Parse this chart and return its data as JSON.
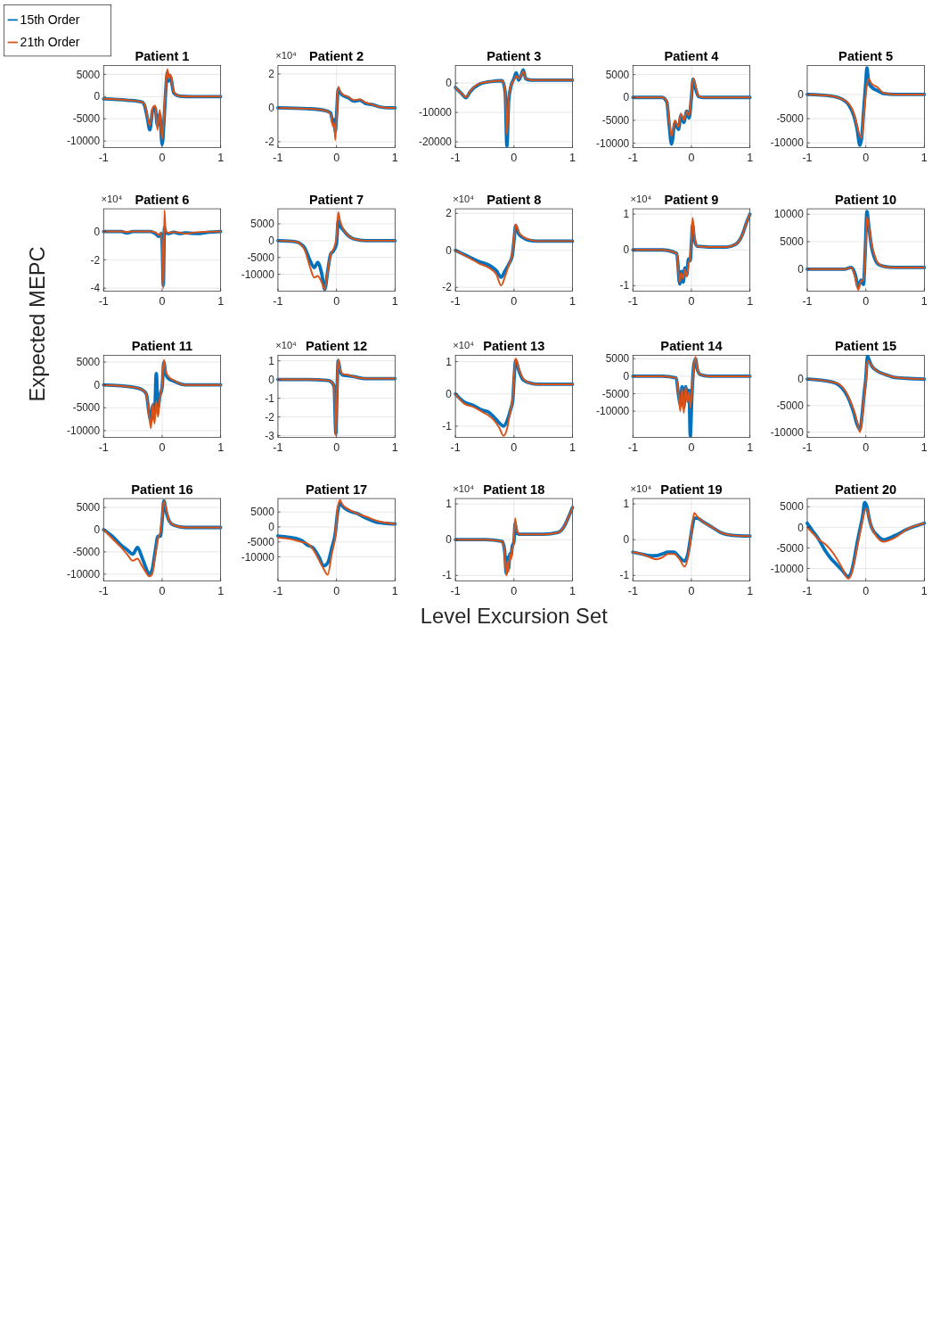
{
  "chart_data": [
    {
      "type": "line",
      "title": "Patient 1",
      "legend": "top left",
      "xlim": [
        -1,
        1
      ],
      "xticks": [
        -1,
        0,
        1
      ],
      "ylim": [
        -11500,
        7000
      ],
      "yticks": [
        5000,
        0,
        -5000,
        -10000
      ],
      "grid": true,
      "x": [
        -1,
        -0.6,
        -0.35,
        -0.3,
        -0.25,
        -0.21,
        -0.16,
        -0.12,
        -0.08,
        -0.04,
        0,
        0.03,
        0.06,
        0.09,
        0.11,
        0.14,
        0.2,
        0.3,
        0.5,
        1
      ],
      "series": [
        {
          "name": "15th Order",
          "color": "#0072bd",
          "values": [
            -500,
            -800,
            -1200,
            -2000,
            -5000,
            -7500,
            -3000,
            -2500,
            -6500,
            -4000,
            -10800,
            -6000,
            1000,
            5500,
            3500,
            4500,
            800,
            100,
            0,
            0
          ]
        },
        {
          "name": "21th Order",
          "color": "#d95319",
          "values": [
            -500,
            -800,
            -1200,
            -1800,
            -4500,
            -6500,
            -2500,
            -2000,
            -7500,
            -3000,
            -9500,
            -5000,
            2000,
            6200,
            4000,
            5000,
            1000,
            100,
            0,
            0
          ]
        }
      ]
    },
    {
      "type": "line",
      "title": "Patient 2",
      "annotations": [
        "×10⁴"
      ],
      "xlim": [
        -1,
        1
      ],
      "xticks": [
        -1,
        0,
        1
      ],
      "ylim": [
        -2.35,
        2.5
      ],
      "yticks": [
        2,
        0,
        -2
      ],
      "grid": true,
      "x": [
        -1,
        -0.5,
        -0.2,
        -0.1,
        -0.06,
        -0.04,
        -0.02,
        0,
        0.03,
        0.06,
        0.1,
        0.2,
        0.3,
        0.4,
        0.5,
        0.6,
        0.75,
        0.9,
        1
      ],
      "series": [
        {
          "color": "#0072bd",
          "values": [
            0,
            -0.05,
            -0.15,
            -0.3,
            -0.9,
            -0.7,
            -1.4,
            -0.5,
            1.1,
            0.9,
            0.75,
            0.6,
            0.4,
            0.45,
            0.25,
            0.2,
            0.05,
            0,
            0
          ]
        },
        {
          "color": "#d95319",
          "values": [
            0,
            -0.05,
            -0.15,
            -0.35,
            -1.1,
            -0.9,
            -1.9,
            -0.5,
            1.25,
            1,
            0.8,
            0.65,
            0.45,
            0.5,
            0.3,
            0.2,
            0.05,
            0,
            0
          ]
        }
      ]
    },
    {
      "type": "line",
      "title": "Patient 3",
      "xlim": [
        -1,
        1
      ],
      "xticks": [
        -1,
        0,
        1
      ],
      "ylim": [
        -22000,
        6000
      ],
      "yticks": [
        0,
        -10000,
        -20000
      ],
      "grid": true,
      "x": [
        -1,
        -0.9,
        -0.82,
        -0.75,
        -0.6,
        -0.4,
        -0.2,
        -0.15,
        -0.12,
        -0.09,
        -0.05,
        0,
        0.04,
        0.08,
        0.12,
        0.16,
        0.2,
        0.3,
        0.6,
        1
      ],
      "series": [
        {
          "color": "#0072bd",
          "values": [
            -1500,
            -3500,
            -5000,
            -3000,
            -500,
            500,
            800,
            -3000,
            -21500,
            -6000,
            -1000,
            1500,
            3500,
            1000,
            2500,
            4500,
            1500,
            1000,
            1000,
            1000
          ]
        },
        {
          "color": "#d95319",
          "values": [
            -1500,
            -3500,
            -4800,
            -2800,
            -300,
            500,
            800,
            -2500,
            -17500,
            -5000,
            -800,
            1000,
            2500,
            1500,
            2500,
            4000,
            1500,
            1000,
            1000,
            1000
          ]
        }
      ]
    },
    {
      "type": "line",
      "title": "Patient 4",
      "xlim": [
        -1,
        1
      ],
      "xticks": [
        -1,
        0,
        1
      ],
      "ylim": [
        -11000,
        7000
      ],
      "yticks": [
        5000,
        0,
        -5000,
        -10000
      ],
      "grid": true,
      "x": [
        -1,
        -0.5,
        -0.42,
        -0.38,
        -0.34,
        -0.28,
        -0.22,
        -0.18,
        -0.13,
        -0.08,
        -0.04,
        0,
        0.03,
        0.07,
        0.12,
        0.2,
        0.5,
        1
      ],
      "series": [
        {
          "color": "#0072bd",
          "values": [
            0,
            0,
            -1000,
            -6000,
            -10200,
            -5500,
            -7000,
            -4000,
            -5500,
            -3000,
            -4500,
            0,
            4000,
            2000,
            200,
            0,
            0,
            0
          ]
        },
        {
          "color": "#d95319",
          "values": [
            0,
            0,
            -800,
            -5000,
            -8500,
            -5000,
            -6500,
            -3500,
            -5000,
            -3000,
            -4000,
            500,
            4200,
            2500,
            300,
            0,
            0,
            0
          ]
        }
      ]
    },
    {
      "type": "line",
      "title": "Patient 5",
      "xlim": [
        -1,
        1
      ],
      "xticks": [
        -1,
        0,
        1
      ],
      "ylim": [
        -11000,
        6000
      ],
      "yticks": [
        0,
        -5000,
        -10000
      ],
      "grid": true,
      "x": [
        -1,
        -0.6,
        -0.4,
        -0.3,
        -0.2,
        -0.15,
        -0.1,
        -0.07,
        -0.04,
        0,
        0.02,
        0.05,
        0.1,
        0.2,
        0.3,
        0.5,
        1
      ],
      "series": [
        {
          "color": "#0072bd",
          "values": [
            0,
            -300,
            -1000,
            -2000,
            -4500,
            -7000,
            -10500,
            -9000,
            -4000,
            2500,
            5500,
            2500,
            1500,
            800,
            200,
            0,
            0
          ]
        },
        {
          "color": "#d95319",
          "values": [
            0,
            -300,
            -1000,
            -1800,
            -4000,
            -6500,
            -8500,
            -9000,
            -5000,
            0,
            2000,
            3200,
            2200,
            1500,
            300,
            0,
            0
          ]
        }
      ]
    },
    {
      "type": "line",
      "title": "Patient 6",
      "annotations": [
        "×10⁴"
      ],
      "xlim": [
        -1,
        1
      ],
      "xticks": [
        -1,
        0,
        1
      ],
      "ylim": [
        -4.2,
        1.6
      ],
      "yticks": [
        0,
        -2,
        -4
      ],
      "grid": true,
      "x": [
        -1,
        -0.7,
        -0.6,
        -0.5,
        -0.2,
        -0.1,
        -0.06,
        -0.02,
        0,
        0.02,
        0.04,
        0.06,
        0.1,
        0.2,
        0.3,
        0.4,
        0.6,
        0.8,
        1
      ],
      "series": [
        {
          "color": "#0072bd",
          "values": [
            0,
            0,
            -0.12,
            0,
            0,
            -0.2,
            -0.35,
            -0.15,
            -0.8,
            -3.8,
            0.3,
            -0.05,
            -0.15,
            -0.05,
            -0.15,
            -0.1,
            -0.15,
            -0.05,
            0
          ]
        },
        {
          "color": "#d95319",
          "values": [
            0,
            0,
            -0.03,
            0,
            0,
            -0.1,
            -0.25,
            -0.1,
            -1,
            -4,
            1.5,
            0.05,
            -0.1,
            -0.05,
            -0.08,
            -0.15,
            -0.05,
            -0.02,
            0
          ]
        }
      ]
    },
    {
      "type": "line",
      "title": "Patient 7",
      "xlim": [
        -1,
        1
      ],
      "xticks": [
        -1,
        0,
        1
      ],
      "ylim": [
        -15000,
        9500
      ],
      "yticks": [
        5000,
        0,
        -5000,
        -10000
      ],
      "grid": true,
      "x": [
        -1,
        -0.7,
        -0.55,
        -0.45,
        -0.38,
        -0.32,
        -0.25,
        -0.2,
        -0.15,
        -0.1,
        -0.05,
        0,
        0.03,
        0.06,
        0.1,
        0.2,
        0.3,
        0.5,
        1
      ],
      "series": [
        {
          "color": "#0072bd",
          "values": [
            0,
            -300,
            -2000,
            -6000,
            -8000,
            -6500,
            -10000,
            -14500,
            -9000,
            -4000,
            -3000,
            -1000,
            6000,
            4500,
            3500,
            1500,
            500,
            0,
            0
          ]
        },
        {
          "color": "#d95319",
          "values": [
            0,
            -300,
            -2500,
            -8000,
            -11000,
            -10500,
            -12500,
            -14500,
            -9000,
            -4000,
            -2500,
            1000,
            8500,
            6000,
            4000,
            1500,
            500,
            0,
            0
          ]
        }
      ]
    },
    {
      "type": "line",
      "title": "Patient 8",
      "annotations": [
        "×10⁴"
      ],
      "xlim": [
        -1,
        1
      ],
      "xticks": [
        -1,
        0,
        1
      ],
      "ylim": [
        -2.2,
        2.25
      ],
      "yticks": [
        2,
        0,
        -2
      ],
      "grid": true,
      "x": [
        -1,
        -0.8,
        -0.6,
        -0.4,
        -0.3,
        -0.22,
        -0.15,
        -0.08,
        -0.03,
        0,
        0.03,
        0.08,
        0.15,
        0.25,
        0.4,
        0.7,
        1
      ],
      "series": [
        {
          "color": "#0072bd",
          "values": [
            0,
            -0.3,
            -0.6,
            -0.85,
            -1.1,
            -1.45,
            -1.1,
            -0.7,
            -0.3,
            0.5,
            1.35,
            0.9,
            0.7,
            0.55,
            0.5,
            0.5,
            0.5
          ]
        },
        {
          "color": "#d95319",
          "values": [
            0,
            -0.35,
            -0.7,
            -1,
            -1.3,
            -1.9,
            -1.4,
            -0.7,
            -0.2,
            0.6,
            1.4,
            1,
            0.75,
            0.6,
            0.5,
            0.5,
            0.5
          ]
        }
      ]
    },
    {
      "type": "line",
      "title": "Patient 9",
      "annotations": [
        "×10⁴"
      ],
      "xlim": [
        -1,
        1
      ],
      "xticks": [
        -1,
        0,
        1
      ],
      "ylim": [
        -1.15,
        1.15
      ],
      "yticks": [
        1,
        0,
        -1
      ],
      "grid": true,
      "x": [
        -1,
        -0.5,
        -0.25,
        -0.2,
        -0.17,
        -0.14,
        -0.11,
        -0.08,
        -0.05,
        -0.02,
        0,
        0.02,
        0.05,
        0.1,
        0.3,
        0.6,
        0.75,
        0.85,
        0.95,
        1
      ],
      "series": [
        {
          "color": "#0072bd",
          "values": [
            0,
            0,
            -0.1,
            -0.95,
            -0.6,
            -0.9,
            -0.5,
            -0.7,
            -0.25,
            -0.3,
            0.2,
            0.7,
            0.3,
            0.1,
            0.08,
            0.08,
            0.15,
            0.35,
            0.8,
            1
          ]
        },
        {
          "color": "#d95319",
          "values": [
            0,
            0,
            -0.1,
            -0.9,
            -0.65,
            -0.8,
            -0.55,
            -0.75,
            -0.4,
            -0.2,
            0.3,
            0.9,
            0.4,
            0.1,
            0.08,
            0.08,
            0.15,
            0.35,
            0.8,
            1
          ]
        }
      ]
    },
    {
      "type": "line",
      "title": "Patient 10",
      "xlim": [
        -1,
        1
      ],
      "xticks": [
        -1,
        0,
        1
      ],
      "ylim": [
        -4000,
        11000
      ],
      "yticks": [
        10000,
        5000,
        0
      ],
      "grid": true,
      "x": [
        -1,
        -0.5,
        -0.35,
        -0.25,
        -0.18,
        -0.13,
        -0.08,
        -0.04,
        -0.01,
        0.02,
        0.05,
        0.1,
        0.15,
        0.2,
        0.3,
        0.5,
        1
      ],
      "series": [
        {
          "color": "#0072bd",
          "values": [
            0,
            0,
            0,
            300,
            -1000,
            -3200,
            -2000,
            -2800,
            3000,
            10500,
            8000,
            4000,
            2000,
            1000,
            500,
            300,
            300
          ]
        },
        {
          "color": "#d95319",
          "values": [
            0,
            0,
            0,
            300,
            -1500,
            -3800,
            -2200,
            -2000,
            2000,
            9500,
            8000,
            4500,
            2500,
            1200,
            500,
            300,
            300
          ]
        }
      ]
    },
    {
      "type": "line",
      "title": "Patient 11",
      "ylabel": "Expected MEPC",
      "xlim": [
        -1,
        1
      ],
      "xticks": [
        -1,
        0,
        1
      ],
      "ylim": [
        -11500,
        6500
      ],
      "yticks": [
        5000,
        0,
        -5000,
        -10000
      ],
      "grid": true,
      "x": [
        -1,
        -0.5,
        -0.35,
        -0.27,
        -0.22,
        -0.19,
        -0.16,
        -0.13,
        -0.1,
        -0.07,
        -0.04,
        0,
        0.03,
        0.06,
        0.1,
        0.2,
        0.4,
        1
      ],
      "series": [
        {
          "color": "#0072bd",
          "values": [
            0,
            -500,
            -1000,
            -2000,
            -6500,
            -8000,
            -4500,
            -6500,
            2500,
            -5000,
            -2500,
            -500,
            5000,
            2500,
            1500,
            800,
            0,
            0
          ]
        },
        {
          "color": "#d95319",
          "values": [
            0,
            -500,
            -1000,
            -2000,
            -7000,
            -9500,
            -4000,
            -8500,
            -3500,
            -7000,
            -3000,
            0,
            5500,
            3000,
            2000,
            1000,
            0,
            0
          ]
        }
      ]
    },
    {
      "type": "line",
      "title": "Patient 12",
      "annotations": [
        "×10⁴"
      ],
      "xlim": [
        -1,
        1
      ],
      "xticks": [
        -1,
        0,
        1
      ],
      "ylim": [
        -3.1,
        1.3
      ],
      "yticks": [
        1,
        0,
        -1,
        -2,
        -3
      ],
      "grid": true,
      "x": [
        -1,
        -0.5,
        -0.15,
        -0.08,
        -0.04,
        -0.01,
        0.01,
        0.03,
        0.06,
        0.1,
        0.2,
        0.3,
        0.5,
        1
      ],
      "series": [
        {
          "color": "#0072bd",
          "values": [
            0,
            0,
            -0.05,
            -0.15,
            -0.4,
            -2.9,
            -0.5,
            1,
            0.5,
            0.25,
            0.2,
            0.15,
            0.05,
            0.05
          ]
        },
        {
          "color": "#d95319",
          "values": [
            0,
            0,
            -0.05,
            -0.15,
            -0.4,
            -3,
            -0.5,
            1.1,
            0.55,
            0.3,
            0.25,
            0.15,
            0.05,
            0.05
          ]
        }
      ]
    },
    {
      "type": "line",
      "title": "Patient 13",
      "annotations": [
        "×10⁴"
      ],
      "xlim": [
        -1,
        1
      ],
      "xticks": [
        -1,
        0,
        1
      ],
      "ylim": [
        -1.35,
        1.2
      ],
      "yticks": [
        1,
        0,
        -1
      ],
      "grid": true,
      "x": [
        -1,
        -0.85,
        -0.7,
        -0.55,
        -0.45,
        -0.35,
        -0.25,
        -0.18,
        -0.12,
        -0.06,
        -0.02,
        0,
        0.03,
        0.08,
        0.15,
        0.25,
        0.4,
        1
      ],
      "series": [
        {
          "color": "#0072bd",
          "values": [
            0,
            -0.25,
            -0.35,
            -0.5,
            -0.55,
            -0.7,
            -0.9,
            -1,
            -0.85,
            -0.5,
            -0.2,
            0.4,
            1.05,
            0.75,
            0.45,
            0.35,
            0.3,
            0.3
          ]
        },
        {
          "color": "#d95319",
          "values": [
            0,
            -0.3,
            -0.4,
            -0.55,
            -0.65,
            -0.8,
            -1.05,
            -1.3,
            -1.1,
            -0.5,
            -0.1,
            0.5,
            1.1,
            0.8,
            0.5,
            0.35,
            0.3,
            0.3
          ]
        }
      ]
    },
    {
      "type": "line",
      "title": "Patient 14",
      "xlim": [
        -1,
        1
      ],
      "xticks": [
        -1,
        0,
        1
      ],
      "ylim": [
        -17500,
        6000
      ],
      "yticks": [
        5000,
        0,
        -5000,
        -10000
      ],
      "grid": true,
      "x": [
        -1,
        -0.5,
        -0.26,
        -0.22,
        -0.19,
        -0.16,
        -0.13,
        -0.1,
        -0.07,
        -0.04,
        -0.02,
        0.01,
        0.04,
        0.07,
        0.1,
        0.15,
        0.3,
        1
      ],
      "series": [
        {
          "color": "#0072bd",
          "values": [
            0,
            0,
            -500,
            -5500,
            -8000,
            -3000,
            -9000,
            -3000,
            -6000,
            -4000,
            -17000,
            -5000,
            3000,
            5000,
            2000,
            500,
            0,
            0
          ]
        },
        {
          "color": "#d95319",
          "values": [
            0,
            0,
            -500,
            -5000,
            -10000,
            -3500,
            -10500,
            -3000,
            -7500,
            -4500,
            -9000,
            -4000,
            2500,
            5500,
            2000,
            500,
            0,
            0
          ]
        }
      ]
    },
    {
      "type": "line",
      "title": "Patient 15",
      "xlim": [
        -1,
        1
      ],
      "xticks": [
        -1,
        0,
        1
      ],
      "ylim": [
        -11000,
        4500
      ],
      "yticks": [
        0,
        -5000,
        -10000
      ],
      "grid": true,
      "x": [
        -1,
        -0.6,
        -0.45,
        -0.35,
        -0.28,
        -0.2,
        -0.15,
        -0.1,
        -0.06,
        -0.03,
        0,
        0.03,
        0.06,
        0.1,
        0.2,
        0.35,
        0.5,
        1
      ],
      "series": [
        {
          "color": "#0072bd",
          "values": [
            0,
            -500,
            -1200,
            -2500,
            -4000,
            -6500,
            -8500,
            -9500,
            -6500,
            -3000,
            0,
            4300,
            3500,
            2500,
            1500,
            800,
            300,
            0
          ]
        },
        {
          "color": "#d95319",
          "values": [
            0,
            -500,
            -1000,
            -2200,
            -3800,
            -6000,
            -8000,
            -10000,
            -7000,
            -3500,
            -500,
            3500,
            3200,
            2500,
            1500,
            800,
            300,
            0
          ]
        }
      ]
    },
    {
      "type": "line",
      "title": "Patient 16",
      "xlim": [
        -1,
        1
      ],
      "xticks": [
        -1,
        0,
        1
      ],
      "ylim": [
        -11500,
        7000
      ],
      "yticks": [
        5000,
        0,
        -5000,
        -10000
      ],
      "grid": true,
      "x": [
        -1,
        -0.85,
        -0.7,
        -0.6,
        -0.5,
        -0.42,
        -0.35,
        -0.28,
        -0.22,
        -0.17,
        -0.12,
        -0.07,
        -0.03,
        0,
        0.03,
        0.07,
        0.12,
        0.2,
        0.4,
        1
      ],
      "series": [
        {
          "color": "#0072bd",
          "values": [
            0,
            -1500,
            -3500,
            -4500,
            -5500,
            -4000,
            -6000,
            -8500,
            -10000,
            -9000,
            -5000,
            -1500,
            -1500,
            2000,
            6500,
            4000,
            2000,
            1000,
            500,
            500
          ]
        },
        {
          "color": "#d95319",
          "values": [
            0,
            -2000,
            -4000,
            -5500,
            -7000,
            -6500,
            -8000,
            -9500,
            -10500,
            -10000,
            -6000,
            -2000,
            -500,
            3000,
            6500,
            4500,
            2000,
            1000,
            500,
            500
          ]
        }
      ]
    },
    {
      "type": "line",
      "title": "Patient 17",
      "xlim": [
        -1,
        1
      ],
      "xticks": [
        -1,
        0,
        1
      ],
      "ylim": [
        -18000,
        9500
      ],
      "yticks": [
        5000,
        0,
        -5000,
        -10000
      ],
      "grid": true,
      "x": [
        -1,
        -0.8,
        -0.6,
        -0.5,
        -0.4,
        -0.3,
        -0.22,
        -0.15,
        -0.08,
        -0.02,
        0.02,
        0.06,
        0.1,
        0.2,
        0.35,
        0.5,
        0.7,
        1
      ],
      "series": [
        {
          "color": "#0072bd",
          "values": [
            -3000,
            -3500,
            -4500,
            -6000,
            -7000,
            -10000,
            -13000,
            -12000,
            -7000,
            -2000,
            5000,
            8000,
            7000,
            5500,
            4500,
            3000,
            1500,
            1000
          ]
        },
        {
          "color": "#d95319",
          "values": [
            -3500,
            -4000,
            -5000,
            -5500,
            -7500,
            -11000,
            -14000,
            -16000,
            -9000,
            -3000,
            6000,
            9000,
            7500,
            6000,
            4500,
            3500,
            2000,
            1000
          ]
        }
      ]
    },
    {
      "type": "line",
      "title": "Patient 18",
      "xlabel": "Level Excursion Set",
      "annotations": [
        "×10⁴"
      ],
      "xlim": [
        -1,
        1
      ],
      "xticks": [
        -1,
        0,
        1
      ],
      "ylim": [
        -1.15,
        1.15
      ],
      "yticks": [
        1,
        0,
        -1
      ],
      "grid": true,
      "x": [
        -1,
        -0.5,
        -0.2,
        -0.16,
        -0.13,
        -0.11,
        -0.09,
        -0.07,
        -0.05,
        -0.03,
        0,
        0.02,
        0.05,
        0.1,
        0.5,
        0.75,
        0.85,
        0.95,
        1
      ],
      "series": [
        {
          "color": "#0072bd",
          "values": [
            0,
            0,
            -0.05,
            -0.3,
            -0.95,
            -0.5,
            -0.8,
            -0.4,
            -0.45,
            -0.2,
            -0.05,
            0.45,
            0.2,
            0.15,
            0.15,
            0.2,
            0.35,
            0.7,
            0.9
          ]
        },
        {
          "color": "#d95319",
          "values": [
            0,
            0,
            -0.05,
            -0.35,
            -1,
            -0.6,
            -0.9,
            -0.4,
            -0.55,
            -0.3,
            0,
            0.6,
            0.25,
            0.15,
            0.15,
            0.2,
            0.35,
            0.7,
            0.9
          ]
        }
      ]
    },
    {
      "type": "line",
      "title": "Patient 19",
      "annotations": [
        "×10⁴"
      ],
      "xlim": [
        -1,
        1
      ],
      "xticks": [
        -1,
        0,
        1
      ],
      "ylim": [
        -1.15,
        1.15
      ],
      "yticks": [
        1,
        0,
        -1
      ],
      "grid": true,
      "x": [
        -1,
        -0.85,
        -0.7,
        -0.6,
        -0.5,
        -0.4,
        -0.3,
        -0.2,
        -0.12,
        -0.06,
        -0.02,
        0.02,
        0.05,
        0.1,
        0.2,
        0.35,
        0.5,
        0.7,
        1
      ],
      "series": [
        {
          "color": "#0072bd",
          "values": [
            -0.35,
            -0.4,
            -0.45,
            -0.45,
            -0.4,
            -0.35,
            -0.35,
            -0.5,
            -0.6,
            -0.4,
            0,
            0.4,
            0.6,
            0.6,
            0.5,
            0.35,
            0.2,
            0.12,
            0.1
          ]
        },
        {
          "color": "#d95319",
          "values": [
            -0.35,
            -0.4,
            -0.5,
            -0.55,
            -0.5,
            -0.4,
            -0.4,
            -0.55,
            -0.75,
            -0.5,
            -0.05,
            0.5,
            0.75,
            0.65,
            0.5,
            0.35,
            0.2,
            0.12,
            0.1
          ]
        }
      ]
    },
    {
      "type": "line",
      "title": "Patient 20",
      "xlim": [
        -1,
        1
      ],
      "xticks": [
        -1,
        0,
        1
      ],
      "ylim": [
        -13000,
        7000
      ],
      "yticks": [
        5000,
        0,
        -5000,
        -10000
      ],
      "grid": true,
      "x": [
        -1,
        -0.9,
        -0.8,
        -0.7,
        -0.6,
        -0.5,
        -0.4,
        -0.3,
        -0.25,
        -0.2,
        -0.15,
        -0.1,
        -0.05,
        -0.02,
        0.02,
        0.06,
        0.1,
        0.2,
        0.3,
        0.5,
        0.7,
        1
      ],
      "series": [
        {
          "color": "#0072bd",
          "values": [
            1000,
            -1000,
            -3000,
            -5500,
            -7500,
            -9000,
            -10500,
            -12000,
            -11000,
            -8000,
            -4000,
            -500,
            3000,
            6000,
            5000,
            2000,
            0,
            -2000,
            -3000,
            -2000,
            -500,
            1000
          ]
        },
        {
          "color": "#d95319",
          "values": [
            0,
            -1500,
            -3000,
            -4000,
            -5500,
            -7500,
            -10000,
            -12500,
            -11500,
            -8500,
            -5000,
            -1500,
            2000,
            4000,
            4500,
            2000,
            0,
            -2500,
            -3500,
            -2500,
            -500,
            1000
          ]
        }
      ]
    }
  ]
}
